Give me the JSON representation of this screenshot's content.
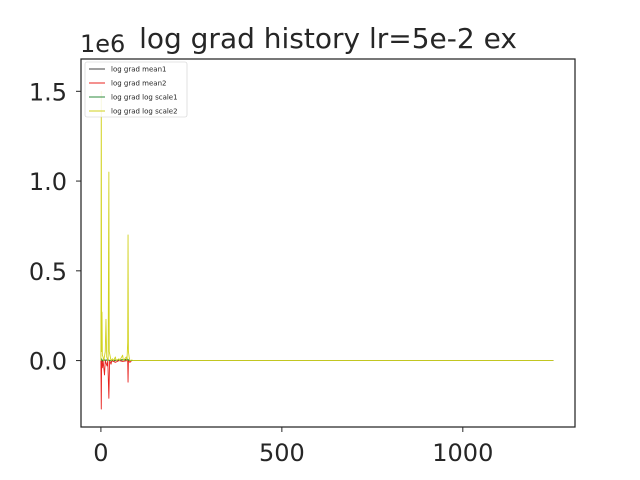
{
  "chart_data": {
    "type": "line",
    "title": "log grad history lr=5e-2 ex",
    "xlabel": "",
    "ylabel": "",
    "y_offset_text": "1e6",
    "xlim": [
      -55,
      1310
    ],
    "ylim": [
      -0.37,
      1.68
    ],
    "y_scale": 1000000,
    "x_ticks": [
      0,
      500,
      1000
    ],
    "y_ticks": [
      0.0,
      0.5,
      1.0,
      1.5
    ],
    "x_tick_labels": [
      "0",
      "500",
      "1000"
    ],
    "y_tick_labels": [
      "0.0",
      "0.5",
      "1.0",
      "1.5"
    ],
    "grid": false,
    "legend_position": "top-left",
    "series": [
      {
        "name": "log grad mean1",
        "color": "#404040",
        "points": [
          [
            0,
            0
          ],
          [
            3,
            0.005
          ],
          [
            5,
            -0.01
          ],
          [
            8,
            0.008
          ],
          [
            12,
            0
          ],
          [
            20,
            0.004
          ],
          [
            30,
            -0.003
          ],
          [
            50,
            0.002
          ],
          [
            75,
            0.004
          ],
          [
            78,
            0
          ],
          [
            100,
            0
          ],
          [
            1250,
            0
          ]
        ]
      },
      {
        "name": "log grad mean2",
        "color": "#e8231f",
        "points": [
          [
            0,
            0
          ],
          [
            1,
            -0.27
          ],
          [
            2,
            0
          ],
          [
            4,
            -0.04
          ],
          [
            6,
            0
          ],
          [
            10,
            -0.08
          ],
          [
            12,
            0
          ],
          [
            17,
            -0.03
          ],
          [
            19,
            0
          ],
          [
            22,
            -0.21
          ],
          [
            24,
            0
          ],
          [
            28,
            -0.02
          ],
          [
            30,
            0
          ],
          [
            40,
            -0.01
          ],
          [
            50,
            0
          ],
          [
            60,
            -0.005
          ],
          [
            74,
            0
          ],
          [
            75,
            -0.12
          ],
          [
            76,
            0
          ],
          [
            80,
            -0.01
          ],
          [
            85,
            0
          ],
          [
            1250,
            0
          ]
        ]
      },
      {
        "name": "log grad log scale1",
        "color": "#2e8b3c",
        "points": [
          [
            0,
            0
          ],
          [
            2,
            0.01
          ],
          [
            4,
            0
          ],
          [
            20,
            0.005
          ],
          [
            22,
            0
          ],
          [
            75,
            0.008
          ],
          [
            77,
            0
          ],
          [
            1250,
            0
          ]
        ]
      },
      {
        "name": "log grad log scale2",
        "color": "#d2d21e",
        "points": [
          [
            0,
            0
          ],
          [
            1,
            1.5
          ],
          [
            2,
            0.05
          ],
          [
            3,
            0.27
          ],
          [
            4,
            0.03
          ],
          [
            6,
            0.02
          ],
          [
            8,
            0
          ],
          [
            12,
            0.05
          ],
          [
            14,
            0.23
          ],
          [
            16,
            0.02
          ],
          [
            18,
            0.01
          ],
          [
            20,
            0
          ],
          [
            22,
            1.05
          ],
          [
            23,
            0.05
          ],
          [
            26,
            0.02
          ],
          [
            28,
            0
          ],
          [
            32,
            0.01
          ],
          [
            35,
            0
          ],
          [
            40,
            0.02
          ],
          [
            42,
            0
          ],
          [
            50,
            0.01
          ],
          [
            52,
            0
          ],
          [
            60,
            0.03
          ],
          [
            62,
            0
          ],
          [
            70,
            0.02
          ],
          [
            72,
            0
          ],
          [
            74,
            0.1
          ],
          [
            75,
            0.7
          ],
          [
            76,
            0.05
          ],
          [
            78,
            0.02
          ],
          [
            80,
            0
          ],
          [
            85,
            0.003
          ],
          [
            90,
            0
          ],
          [
            1250,
            0
          ]
        ]
      }
    ]
  }
}
